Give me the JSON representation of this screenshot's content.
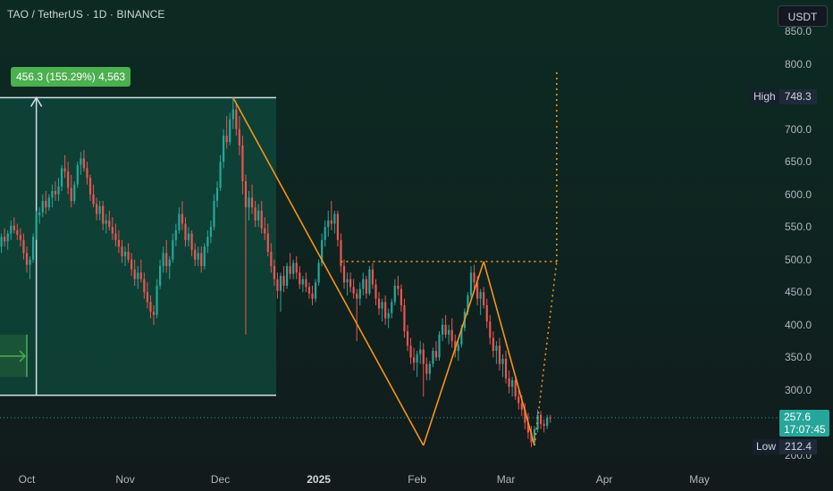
{
  "header": {
    "symbol_title": "TAO / TetherUS · 1D · BINANCE",
    "currency_button": "USDT"
  },
  "measure": {
    "label": "456.3 (155.29%) 4,563",
    "color": "#4caf50"
  },
  "price_scale": {
    "ticks": [
      "850.0",
      "800.0",
      "750.0",
      "700.0",
      "650.0",
      "600.0",
      "550.0",
      "500.0",
      "450.0",
      "400.0",
      "350.0",
      "300.0",
      "250.0",
      "200.0"
    ],
    "high_label": "High",
    "high_value": "748.3",
    "low_label": "Low",
    "low_value": "212.4",
    "last_price": "257.6",
    "countdown": "17:07:45"
  },
  "time_scale": {
    "ticks": [
      "Oct",
      "Nov",
      "Dec",
      "2025",
      "Feb",
      "Mar",
      "Apr",
      "May"
    ]
  },
  "colors": {
    "up": "#26a69a",
    "down": "#ef5350",
    "pattern": "#f7931a",
    "measure_fill": "#0f4a3c",
    "measure_line": "#d1dfe8"
  },
  "chart_data": {
    "type": "candlestick",
    "symbol": "TAO / TetherUS",
    "interval": "1D",
    "exchange": "BINANCE",
    "ylim": [
      190,
      870
    ],
    "x_range": [
      "2024-09-23",
      "2025-05-15"
    ],
    "high": 748.3,
    "low": 212.4,
    "last": 257.6,
    "measure": {
      "from": 292,
      "to": 748.3,
      "change": 456.3,
      "change_pct": 155.29,
      "ticks": 4563
    },
    "candles": [
      [
        "2024-09-23",
        520,
        540,
        510,
        535
      ],
      [
        "2024-09-24",
        535,
        548,
        520,
        528
      ],
      [
        "2024-09-25",
        528,
        545,
        515,
        540
      ],
      [
        "2024-09-26",
        540,
        560,
        530,
        552
      ],
      [
        "2024-09-27",
        552,
        565,
        540,
        545
      ],
      [
        "2024-09-28",
        545,
        555,
        530,
        538
      ],
      [
        "2024-09-29",
        538,
        548,
        520,
        530
      ],
      [
        "2024-09-30",
        530,
        540,
        500,
        510
      ],
      [
        "2024-10-01",
        510,
        520,
        480,
        492
      ],
      [
        "2024-10-02",
        492,
        505,
        470,
        500
      ],
      [
        "2024-10-03",
        500,
        540,
        495,
        535
      ],
      [
        "2024-10-04",
        535,
        575,
        530,
        568
      ],
      [
        "2024-10-05",
        568,
        580,
        555,
        572
      ],
      [
        "2024-10-06",
        572,
        600,
        565,
        590
      ],
      [
        "2024-10-07",
        590,
        605,
        570,
        580
      ],
      [
        "2024-10-08",
        580,
        600,
        575,
        595
      ],
      [
        "2024-10-09",
        595,
        615,
        580,
        605
      ],
      [
        "2024-10-10",
        605,
        620,
        590,
        600
      ],
      [
        "2024-10-11",
        600,
        625,
        590,
        612
      ],
      [
        "2024-10-12",
        612,
        645,
        605,
        640
      ],
      [
        "2024-10-13",
        640,
        660,
        625,
        635
      ],
      [
        "2024-10-14",
        635,
        650,
        600,
        610
      ],
      [
        "2024-10-15",
        610,
        630,
        580,
        590
      ],
      [
        "2024-10-16",
        590,
        620,
        585,
        615
      ],
      [
        "2024-10-17",
        615,
        650,
        610,
        645
      ],
      [
        "2024-10-18",
        645,
        665,
        630,
        655
      ],
      [
        "2024-10-19",
        655,
        668,
        635,
        640
      ],
      [
        "2024-10-20",
        640,
        650,
        615,
        625
      ],
      [
        "2024-10-21",
        625,
        630,
        590,
        600
      ],
      [
        "2024-10-22",
        600,
        615,
        580,
        585
      ],
      [
        "2024-10-23",
        585,
        595,
        560,
        570
      ],
      [
        "2024-10-24",
        570,
        590,
        560,
        582
      ],
      [
        "2024-10-25",
        582,
        590,
        545,
        555
      ],
      [
        "2024-10-26",
        555,
        570,
        540,
        560
      ],
      [
        "2024-10-27",
        560,
        575,
        545,
        550
      ],
      [
        "2024-10-28",
        550,
        565,
        530,
        540
      ],
      [
        "2024-10-29",
        540,
        555,
        520,
        530
      ],
      [
        "2024-10-30",
        530,
        545,
        510,
        520
      ],
      [
        "2024-10-31",
        520,
        530,
        495,
        505
      ],
      [
        "2024-11-01",
        505,
        520,
        490,
        512
      ],
      [
        "2024-11-02",
        512,
        525,
        495,
        500
      ],
      [
        "2024-11-03",
        500,
        510,
        475,
        485
      ],
      [
        "2024-11-04",
        485,
        500,
        460,
        470
      ],
      [
        "2024-11-05",
        470,
        490,
        455,
        480
      ],
      [
        "2024-11-06",
        480,
        500,
        465,
        470
      ],
      [
        "2024-11-07",
        470,
        480,
        440,
        450
      ],
      [
        "2024-11-08",
        450,
        465,
        425,
        435
      ],
      [
        "2024-11-09",
        435,
        445,
        410,
        420
      ],
      [
        "2024-11-10",
        420,
        430,
        400,
        415
      ],
      [
        "2024-11-11",
        415,
        470,
        410,
        460
      ],
      [
        "2024-11-12",
        460,
        500,
        455,
        490
      ],
      [
        "2024-11-13",
        490,
        520,
        480,
        510
      ],
      [
        "2024-11-14",
        510,
        530,
        480,
        490
      ],
      [
        "2024-11-15",
        490,
        505,
        470,
        500
      ],
      [
        "2024-11-16",
        500,
        540,
        495,
        530
      ],
      [
        "2024-11-17",
        530,
        555,
        520,
        545
      ],
      [
        "2024-11-18",
        545,
        580,
        540,
        570
      ],
      [
        "2024-11-19",
        570,
        590,
        545,
        555
      ],
      [
        "2024-11-20",
        555,
        565,
        520,
        530
      ],
      [
        "2024-11-21",
        530,
        550,
        520,
        540
      ],
      [
        "2024-11-22",
        540,
        545,
        505,
        515
      ],
      [
        "2024-11-23",
        515,
        525,
        490,
        500
      ],
      [
        "2024-11-24",
        500,
        520,
        490,
        510
      ],
      [
        "2024-11-25",
        510,
        520,
        480,
        490
      ],
      [
        "2024-11-26",
        490,
        525,
        485,
        520
      ],
      [
        "2024-11-27",
        520,
        545,
        510,
        535
      ],
      [
        "2024-11-28",
        535,
        560,
        525,
        550
      ],
      [
        "2024-11-29",
        550,
        600,
        545,
        590
      ],
      [
        "2024-11-30",
        590,
        620,
        580,
        610
      ],
      [
        "2024-12-01",
        610,
        660,
        605,
        650
      ],
      [
        "2024-12-02",
        650,
        700,
        640,
        690
      ],
      [
        "2024-12-03",
        690,
        720,
        670,
        680
      ],
      [
        "2024-12-04",
        680,
        725,
        675,
        715
      ],
      [
        "2024-12-05",
        715,
        748.3,
        700,
        730
      ],
      [
        "2024-12-06",
        730,
        740,
        690,
        700
      ],
      [
        "2024-12-07",
        700,
        720,
        660,
        675
      ],
      [
        "2024-12-08",
        675,
        690,
        600,
        620
      ],
      [
        "2024-12-09",
        620,
        630,
        385,
        580
      ],
      [
        "2024-12-10",
        580,
        605,
        560,
        595
      ],
      [
        "2024-12-11",
        595,
        615,
        570,
        580
      ],
      [
        "2024-12-12",
        580,
        590,
        550,
        560
      ],
      [
        "2024-12-13",
        560,
        585,
        550,
        575
      ],
      [
        "2024-12-14",
        575,
        590,
        540,
        548
      ],
      [
        "2024-12-15",
        548,
        565,
        530,
        540
      ],
      [
        "2024-12-16",
        540,
        555,
        505,
        512
      ],
      [
        "2024-12-17",
        512,
        525,
        480,
        490
      ],
      [
        "2024-12-18",
        490,
        500,
        460,
        470
      ],
      [
        "2024-12-19",
        470,
        480,
        440,
        452
      ],
      [
        "2024-12-20",
        452,
        480,
        420,
        475
      ],
      [
        "2024-12-21",
        475,
        490,
        450,
        460
      ],
      [
        "2024-12-22",
        460,
        495,
        455,
        490
      ],
      [
        "2024-12-23",
        490,
        510,
        470,
        478
      ],
      [
        "2024-12-24",
        478,
        500,
        470,
        495
      ],
      [
        "2024-12-25",
        495,
        505,
        470,
        480
      ],
      [
        "2024-12-26",
        480,
        490,
        455,
        462
      ],
      [
        "2024-12-27",
        462,
        475,
        450,
        470
      ],
      [
        "2024-12-28",
        470,
        480,
        450,
        458
      ],
      [
        "2024-12-29",
        458,
        465,
        440,
        448
      ],
      [
        "2024-12-30",
        448,
        460,
        430,
        440
      ],
      [
        "2024-12-31",
        440,
        470,
        435,
        465
      ],
      [
        "2025-01-01",
        465,
        500,
        460,
        495
      ],
      [
        "2025-01-02",
        495,
        540,
        490,
        530
      ],
      [
        "2025-01-03",
        530,
        560,
        520,
        550
      ],
      [
        "2025-01-04",
        550,
        575,
        535,
        560
      ],
      [
        "2025-01-05",
        560,
        590,
        545,
        555
      ],
      [
        "2025-01-06",
        555,
        575,
        540,
        570
      ],
      [
        "2025-01-07",
        570,
        575,
        520,
        530
      ],
      [
        "2025-01-08",
        530,
        540,
        480,
        490
      ],
      [
        "2025-01-09",
        490,
        500,
        455,
        465
      ],
      [
        "2025-01-10",
        465,
        480,
        445,
        470
      ],
      [
        "2025-01-11",
        470,
        480,
        450,
        458
      ],
      [
        "2025-01-12",
        458,
        470,
        440,
        448
      ],
      [
        "2025-01-13",
        448,
        455,
        375,
        440
      ],
      [
        "2025-01-14",
        440,
        465,
        430,
        455
      ],
      [
        "2025-01-15",
        455,
        480,
        445,
        470
      ],
      [
        "2025-01-16",
        470,
        475,
        440,
        448
      ],
      [
        "2025-01-17",
        448,
        490,
        445,
        485
      ],
      [
        "2025-01-18",
        485,
        495,
        455,
        462
      ],
      [
        "2025-01-19",
        462,
        470,
        430,
        440
      ],
      [
        "2025-01-20",
        440,
        450,
        415,
        425
      ],
      [
        "2025-01-21",
        425,
        440,
        405,
        435
      ],
      [
        "2025-01-22",
        435,
        445,
        400,
        410
      ],
      [
        "2025-01-23",
        410,
        425,
        395,
        418
      ],
      [
        "2025-01-24",
        418,
        440,
        410,
        435
      ],
      [
        "2025-01-25",
        435,
        470,
        430,
        460
      ],
      [
        "2025-01-26",
        460,
        475,
        445,
        455
      ],
      [
        "2025-01-27",
        455,
        462,
        420,
        430
      ],
      [
        "2025-01-28",
        430,
        440,
        380,
        390
      ],
      [
        "2025-01-29",
        390,
        400,
        360,
        368
      ],
      [
        "2025-01-30",
        368,
        380,
        340,
        350
      ],
      [
        "2025-01-31",
        350,
        365,
        330,
        342
      ],
      [
        "2025-02-01",
        342,
        360,
        320,
        355
      ],
      [
        "2025-02-02",
        355,
        375,
        340,
        362
      ],
      [
        "2025-02-03",
        362,
        372,
        290,
        340
      ],
      [
        "2025-02-04",
        340,
        350,
        315,
        325
      ],
      [
        "2025-02-05",
        325,
        345,
        315,
        340
      ],
      [
        "2025-02-06",
        340,
        365,
        335,
        360
      ],
      [
        "2025-02-07",
        360,
        375,
        345,
        350
      ],
      [
        "2025-02-08",
        350,
        390,
        345,
        385
      ],
      [
        "2025-02-09",
        385,
        410,
        375,
        400
      ],
      [
        "2025-02-10",
        400,
        415,
        380,
        385
      ],
      [
        "2025-02-11",
        385,
        400,
        370,
        392
      ],
      [
        "2025-02-12",
        392,
        410,
        365,
        375
      ],
      [
        "2025-02-13",
        375,
        385,
        350,
        360
      ],
      [
        "2025-02-14",
        360,
        375,
        345,
        370
      ],
      [
        "2025-02-15",
        370,
        400,
        365,
        395
      ],
      [
        "2025-02-16",
        395,
        425,
        390,
        420
      ],
      [
        "2025-02-17",
        420,
        450,
        415,
        445
      ],
      [
        "2025-02-18",
        445,
        490,
        440,
        480
      ],
      [
        "2025-02-19",
        480,
        492,
        455,
        465
      ],
      [
        "2025-02-20",
        465,
        475,
        430,
        440
      ],
      [
        "2025-02-21",
        440,
        455,
        415,
        450
      ],
      [
        "2025-02-22",
        450,
        458,
        425,
        430
      ],
      [
        "2025-02-23",
        430,
        440,
        395,
        405
      ],
      [
        "2025-02-24",
        405,
        415,
        370,
        380
      ],
      [
        "2025-02-25",
        380,
        390,
        350,
        360
      ],
      [
        "2025-02-26",
        360,
        375,
        340,
        368
      ],
      [
        "2025-02-27",
        368,
        380,
        330,
        340
      ],
      [
        "2025-02-28",
        340,
        355,
        320,
        348
      ],
      [
        "2025-03-01",
        348,
        360,
        310,
        318
      ],
      [
        "2025-03-02",
        318,
        330,
        295,
        305
      ],
      [
        "2025-03-03",
        305,
        320,
        290,
        315
      ],
      [
        "2025-03-04",
        315,
        322,
        285,
        290
      ],
      [
        "2025-03-05",
        290,
        300,
        270,
        280
      ],
      [
        "2025-03-06",
        280,
        292,
        260,
        270
      ],
      [
        "2025-03-07",
        270,
        280,
        240,
        250
      ],
      [
        "2025-03-08",
        250,
        265,
        225,
        235
      ],
      [
        "2025-03-09",
        235,
        245,
        212.4,
        220
      ],
      [
        "2025-03-10",
        220,
        245,
        215,
        240
      ],
      [
        "2025-03-11",
        240,
        270,
        235,
        262
      ],
      [
        "2025-03-12",
        262,
        268,
        240,
        248
      ],
      [
        "2025-03-13",
        248,
        255,
        235,
        245
      ],
      [
        "2025-03-14",
        245,
        262,
        240,
        258
      ],
      [
        "2025-03-15",
        258,
        262,
        250,
        257.6
      ]
    ],
    "pattern_lines": [
      [
        [
          "2024-12-05",
          748.3
        ],
        [
          "2025-02-03",
          215
        ]
      ],
      [
        [
          "2025-02-03",
          215
        ],
        [
          "2025-02-22",
          497
        ]
      ],
      [
        [
          "2025-02-22",
          497
        ],
        [
          "2025-03-10",
          215
        ]
      ]
    ],
    "pattern_dotted": [
      [
        [
          "2025-01-08",
          497
        ],
        [
          "2025-03-17",
          497
        ]
      ],
      [
        [
          "2025-03-10",
          215
        ],
        [
          "2025-03-17",
          497
        ]
      ],
      [
        [
          "2025-03-17",
          497
        ],
        [
          "2025-03-17",
          790
        ]
      ]
    ]
  }
}
